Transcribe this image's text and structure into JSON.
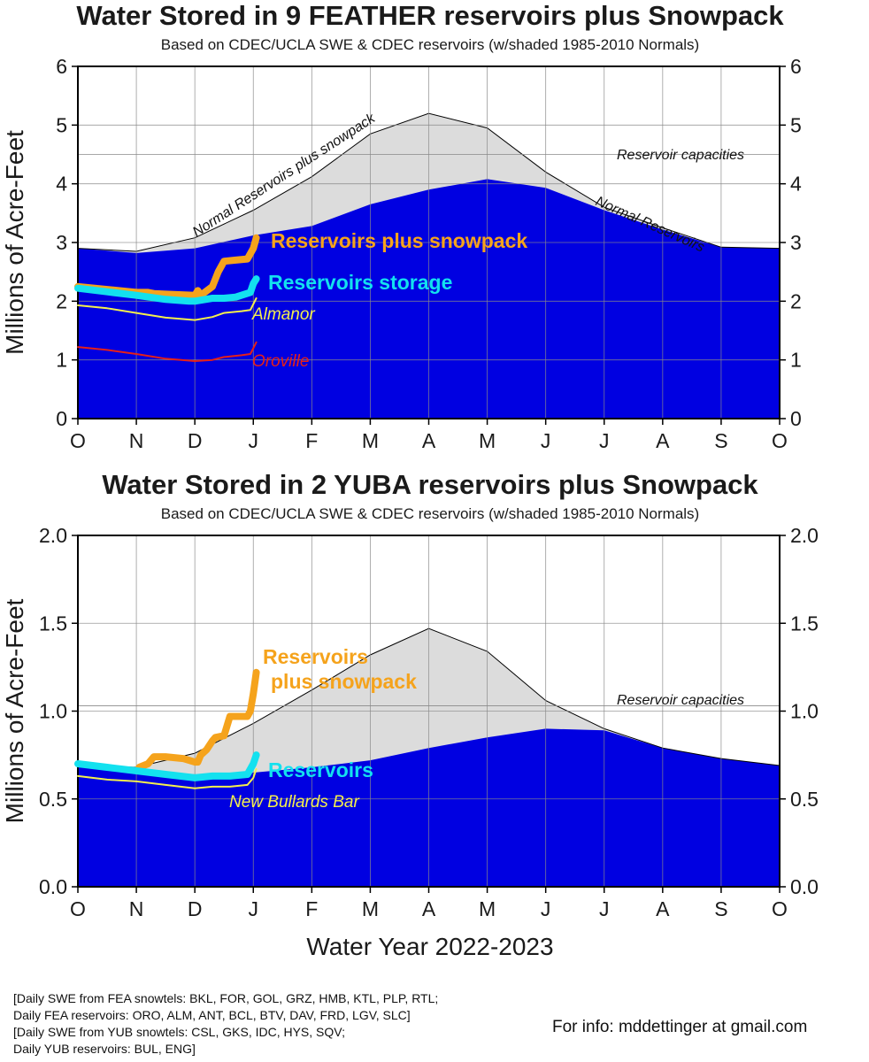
{
  "chart_data": [
    {
      "type": "area",
      "title": "Water Stored in 9 FEATHER reservoirs plus Snowpack",
      "subtitle": "Based on CDEC/UCLA SWE & CDEC reservoirs (w/shaded 1985-2010 Normals)",
      "ylabel": "Millions of Acre-Feet",
      "ylim": [
        0,
        6
      ],
      "yticks": [
        "0",
        "1",
        "2",
        "3",
        "4",
        "5",
        "6"
      ],
      "month_labels": [
        "O",
        "N",
        "D",
        "J",
        "F",
        "M",
        "A",
        "M",
        "J",
        "J",
        "A",
        "S",
        "O"
      ],
      "grid": true,
      "capacity_value": 4.5,
      "annotations": {
        "capacity": "Reservoir capacities",
        "normal_total": "Normal Reservoirs plus snowpack",
        "normal_reservoirs": "Normal Reservoirs"
      },
      "normal_total": {
        "x": [
          0,
          1,
          2,
          3,
          4,
          5,
          6,
          7,
          8,
          9,
          10,
          11,
          12
        ],
        "y": [
          2.9,
          2.85,
          3.08,
          3.55,
          4.12,
          4.85,
          5.2,
          4.95,
          4.2,
          3.6,
          3.25,
          2.92,
          2.9
        ]
      },
      "normal_reservoirs": {
        "x": [
          0,
          1,
          2,
          3,
          4,
          5,
          6,
          7,
          8,
          9,
          10,
          11,
          12
        ],
        "y": [
          2.9,
          2.82,
          2.9,
          3.12,
          3.28,
          3.65,
          3.9,
          4.08,
          3.93,
          3.55,
          3.22,
          2.92,
          2.9
        ]
      },
      "series": [
        {
          "name": "Reservoirs plus snowpack",
          "color": "#f5a31c",
          "x": [
            0.0,
            0.5,
            1.0,
            1.2,
            1.3,
            1.5,
            2.0,
            2.05,
            2.1,
            2.3,
            2.4,
            2.5,
            2.7,
            2.9,
            3.0,
            3.05
          ],
          "y": [
            2.25,
            2.2,
            2.15,
            2.15,
            2.13,
            2.12,
            2.1,
            2.18,
            2.1,
            2.25,
            2.5,
            2.68,
            2.7,
            2.72,
            2.9,
            3.08
          ]
        },
        {
          "name": "Reservoirs storage",
          "color": "#13e1ef",
          "x": [
            0.0,
            0.5,
            1.0,
            1.5,
            1.9,
            2.0,
            2.3,
            2.5,
            2.7,
            2.95,
            3.0,
            3.05
          ],
          "y": [
            2.22,
            2.16,
            2.1,
            2.03,
            2.0,
            2.0,
            2.05,
            2.05,
            2.07,
            2.15,
            2.3,
            2.38
          ]
        },
        {
          "name": "Almanor",
          "color": "#f4ef4d",
          "x": [
            0.0,
            0.5,
            1.0,
            1.5,
            2.0,
            2.3,
            2.5,
            2.8,
            2.95,
            3.0,
            3.05
          ],
          "y": [
            1.93,
            1.88,
            1.8,
            1.72,
            1.68,
            1.73,
            1.8,
            1.83,
            1.85,
            1.95,
            2.05
          ]
        },
        {
          "name": "Oroville",
          "color": "#e52019",
          "x": [
            0.0,
            0.5,
            1.0,
            1.5,
            2.0,
            2.3,
            2.5,
            2.8,
            2.95,
            3.0,
            3.05
          ],
          "y": [
            1.22,
            1.17,
            1.1,
            1.02,
            0.98,
            1.0,
            1.05,
            1.08,
            1.1,
            1.2,
            1.3
          ]
        }
      ]
    },
    {
      "type": "area",
      "title": "Water Stored in 2 YUBA reservoirs plus Snowpack",
      "subtitle": "Based on CDEC/UCLA SWE & CDEC reservoirs (w/shaded 1985-2010 Normals)",
      "ylabel": "Millions of Acre-Feet",
      "xlabel": "Water Year 2022-2023",
      "ylim": [
        0,
        2
      ],
      "yticks": [
        "0.0",
        "0.5",
        "1.0",
        "1.5",
        "2.0"
      ],
      "month_labels": [
        "O",
        "N",
        "D",
        "J",
        "F",
        "M",
        "A",
        "M",
        "J",
        "J",
        "A",
        "S",
        "O"
      ],
      "grid": true,
      "capacity_value": 1.03,
      "annotations": {
        "capacity": "Reservoir capacities"
      },
      "normal_total": {
        "x": [
          0,
          1,
          2,
          3,
          4,
          5,
          6,
          7,
          8,
          9,
          10,
          11,
          12
        ],
        "y": [
          0.69,
          0.68,
          0.76,
          0.93,
          1.12,
          1.32,
          1.47,
          1.34,
          1.06,
          0.9,
          0.79,
          0.73,
          0.69
        ]
      },
      "normal_reservoirs": {
        "x": [
          0,
          1,
          2,
          3,
          4,
          5,
          6,
          7,
          8,
          9,
          10,
          11,
          12
        ],
        "y": [
          0.69,
          0.66,
          0.64,
          0.65,
          0.68,
          0.72,
          0.79,
          0.85,
          0.9,
          0.89,
          0.79,
          0.73,
          0.69
        ]
      },
      "series": [
        {
          "name": "Reservoirs plus snowpack",
          "color": "#f5a31c",
          "x": [
            1.05,
            1.2,
            1.3,
            1.5,
            1.8,
            2.0,
            2.05,
            2.1,
            2.2,
            2.3,
            2.35,
            2.5,
            2.6,
            2.9,
            2.95,
            3.0,
            3.05
          ],
          "y": [
            0.68,
            0.7,
            0.74,
            0.74,
            0.73,
            0.71,
            0.71,
            0.75,
            0.78,
            0.83,
            0.85,
            0.86,
            0.97,
            0.97,
            1.0,
            1.1,
            1.22
          ]
        },
        {
          "name": "Reservoirs",
          "color": "#13e1ef",
          "x": [
            0.0,
            0.5,
            1.0,
            1.5,
            2.0,
            2.3,
            2.6,
            2.9,
            3.0,
            3.05
          ],
          "y": [
            0.7,
            0.68,
            0.66,
            0.64,
            0.62,
            0.63,
            0.63,
            0.64,
            0.7,
            0.75
          ]
        },
        {
          "name": "New Bullards Bar",
          "color": "#f4ef4d",
          "x": [
            0.0,
            0.5,
            1.0,
            1.5,
            2.0,
            2.3,
            2.6,
            2.9,
            3.0,
            3.05
          ],
          "y": [
            0.63,
            0.61,
            0.6,
            0.58,
            0.56,
            0.57,
            0.57,
            0.58,
            0.62,
            0.67
          ]
        }
      ]
    }
  ],
  "footer": {
    "lines": [
      "[Daily SWE from FEA snowtels: BKL, FOR, GOL, GRZ, HMB, KTL, PLP, RTL;",
      "Daily FEA reservoirs: ORO, ALM, ANT, BCL, BTV, DAV, FRD, LGV, SLC]",
      "[Daily SWE from YUB snowtels: CSL, GKS, IDC, HYS, SQV;",
      "Daily YUB reservoirs: BUL, ENG]"
    ],
    "info": "For info: mddettinger at gmail.com"
  },
  "colors": {
    "reservoir_fill": "#0000e1",
    "normal_fill": "#dcdcdc"
  }
}
